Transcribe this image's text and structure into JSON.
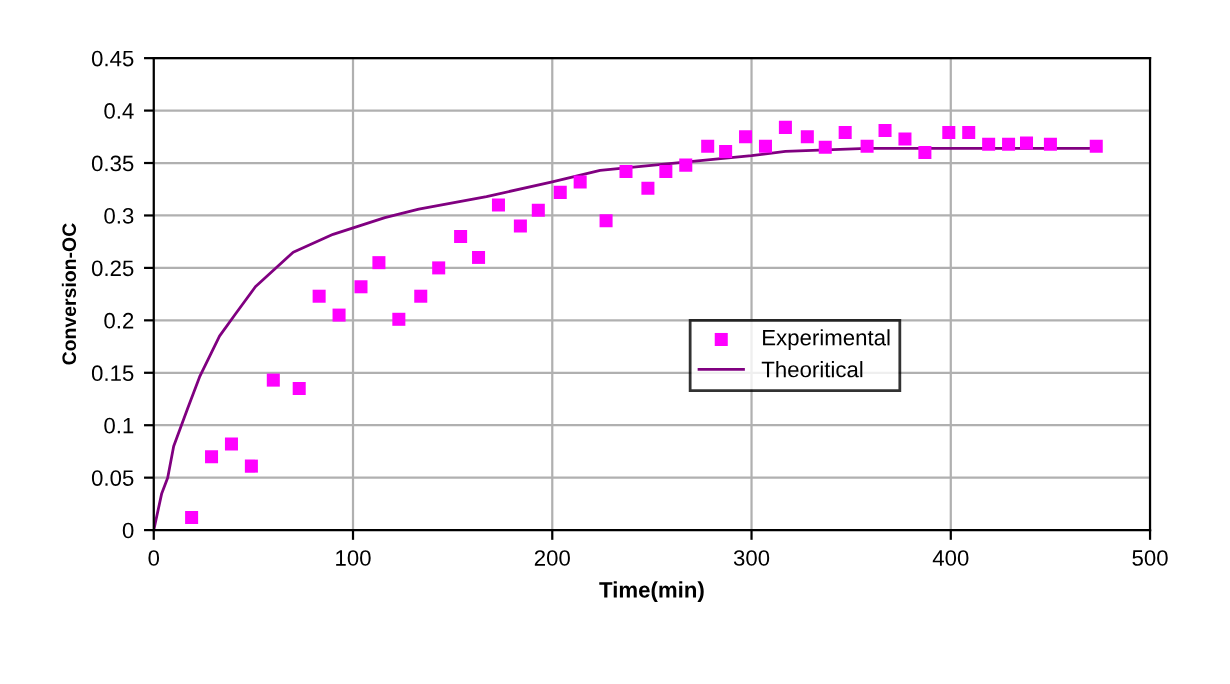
{
  "chart_data": {
    "type": "scatter",
    "xlabel": "Time(min)",
    "ylabel": "Conversion-OC",
    "xlim": [
      0,
      500
    ],
    "xticks": [
      0,
      100,
      200,
      300,
      400,
      500
    ],
    "ylim": [
      0,
      0.45
    ],
    "yticks": [
      0,
      0.05,
      0.1,
      0.15,
      0.2,
      0.25,
      0.3,
      0.35,
      0.4,
      0.45
    ],
    "grid": true,
    "legend": "center right",
    "series": [
      {
        "name": "Experimental",
        "marker": "square",
        "color": "#ff00ff",
        "x": [
          19,
          29,
          39,
          49,
          60,
          73,
          83,
          93,
          104,
          113,
          123,
          134,
          143,
          154,
          163,
          173,
          184,
          193,
          204,
          214,
          227,
          237,
          248,
          257,
          267,
          278,
          287,
          297,
          307,
          317,
          328,
          337,
          347,
          358,
          367,
          377,
          387,
          399,
          409,
          419,
          429,
          438,
          450,
          473
        ],
        "values": [
          0.012,
          0.07,
          0.082,
          0.061,
          0.143,
          0.135,
          0.223,
          0.205,
          0.232,
          0.255,
          0.201,
          0.223,
          0.25,
          0.28,
          0.26,
          0.31,
          0.29,
          0.305,
          0.322,
          0.332,
          0.295,
          0.342,
          0.326,
          0.342,
          0.348,
          0.366,
          0.361,
          0.375,
          0.366,
          0.384,
          0.375,
          0.365,
          0.379,
          0.366,
          0.381,
          0.373,
          0.36,
          0.379,
          0.379,
          0.368,
          0.368,
          0.369,
          0.368,
          0.366
        ]
      },
      {
        "name": "Theoritical",
        "type": "line",
        "marker": "none",
        "color": "#800080",
        "x": [
          0,
          4,
          7,
          10,
          17,
          23,
          33,
          41,
          51,
          70,
          90,
          116,
          133,
          167,
          200,
          224,
          300,
          317,
          358,
          398,
          473
        ],
        "values": [
          0,
          0.035,
          0.05,
          0.08,
          0.116,
          0.146,
          0.185,
          0.206,
          0.232,
          0.265,
          0.282,
          0.298,
          0.306,
          0.318,
          0.332,
          0.343,
          0.357,
          0.361,
          0.364,
          0.364,
          0.364
        ]
      }
    ]
  }
}
